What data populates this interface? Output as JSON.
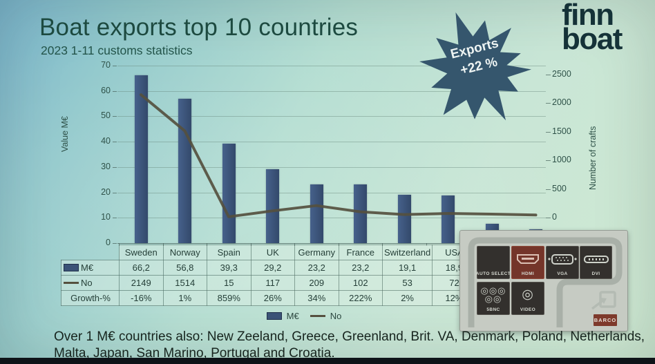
{
  "header": {
    "title": "Boat exports top 10 countries",
    "subtitle": "2023 1-11 customs statistics"
  },
  "logo": {
    "line1": "finn",
    "line2": "boat"
  },
  "badge": {
    "line1": "Exports",
    "line2": "+22 %"
  },
  "chart_data": {
    "type": "bar+line",
    "title": "Boat exports top 10 countries",
    "subtitle": "2023 1-11 customs statistics",
    "categories": [
      "Sweden",
      "Norway",
      "Spain",
      "UK",
      "Germany",
      "France",
      "Switzerland",
      "USA",
      "",
      ""
    ],
    "series": [
      {
        "name": "M€",
        "type": "bar",
        "axis": "left",
        "values": [
          66.2,
          56.8,
          39.3,
          29.2,
          23.2,
          23.2,
          19.1,
          18.9,
          7.5,
          5.5
        ],
        "color": "#3b5377"
      },
      {
        "name": "No",
        "type": "line",
        "axis": "right",
        "values": [
          2149,
          1514,
          15,
          117,
          209,
          102,
          53,
          72,
          60,
          45
        ],
        "color": "#55503f"
      }
    ],
    "left_axis": {
      "label": "Value M€",
      "min": 0,
      "max": 70,
      "ticks": [
        0,
        10,
        20,
        30,
        40,
        50,
        60,
        70
      ]
    },
    "right_axis": {
      "label": "Number of crafts",
      "min": 0,
      "max": 2500,
      "ticks": [
        0,
        500,
        1000,
        1500,
        2000,
        2500
      ]
    },
    "legend": {
      "position": "bottom",
      "entries": [
        "M€",
        "No"
      ]
    },
    "grid": true
  },
  "table": {
    "columns": [
      "Sweden",
      "Norway",
      "Spain",
      "UK",
      "Germany",
      "France",
      "Switzerland",
      "USA"
    ],
    "rows": [
      {
        "header": "M€",
        "swatch": "bar",
        "cells": [
          "66,2",
          "56,8",
          "39,3",
          "29,2",
          "23,2",
          "23,2",
          "19,1",
          "18,9"
        ]
      },
      {
        "header": "No",
        "swatch": "line",
        "cells": [
          "2149",
          "1514",
          "15",
          "117",
          "209",
          "102",
          "53",
          "72"
        ]
      },
      {
        "header": "Growth-%",
        "swatch": "none",
        "cells": [
          "-16%",
          "1%",
          "859%",
          "26%",
          "34%",
          "222%",
          "2%",
          "12%"
        ]
      }
    ]
  },
  "legend": {
    "bar_label": "M€",
    "line_label": "No"
  },
  "osd": {
    "buttons": [
      {
        "label": "AUTO SELECT",
        "icon": "none",
        "active": false
      },
      {
        "label": "HDMI",
        "icon": "hdmi",
        "active": true
      },
      {
        "label": "VGA",
        "icon": "vga",
        "active": false
      },
      {
        "label": "DVI",
        "icon": "dvi",
        "active": false
      },
      {
        "label": "5BNC",
        "icon": "bnc5",
        "active": false
      },
      {
        "label": "VIDEO",
        "icon": "bnc1",
        "active": false
      }
    ],
    "brand": "BARCO"
  },
  "footer": {
    "line1": "Over 1 M€ countries also: New Zeeland, Greece, Greenland, Brit. VA, Denmark, Poland, Netherlands,",
    "line2": "Malta, Japan, San Marino, Portugal and Croatia."
  },
  "colors": {
    "bar": "#3b5377",
    "line": "#55503f",
    "star": "#35566d",
    "title_text": "#1d4a40",
    "hdmi_button": "#74352a"
  }
}
